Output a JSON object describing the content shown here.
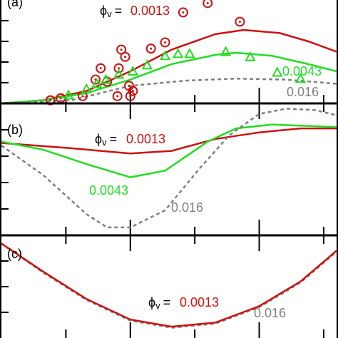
{
  "chart_data": [
    {
      "type": "line",
      "label": "(a)",
      "symbol": "ϕ",
      "subscript": "v",
      "equals": "=",
      "xlim": [
        0,
        2.6
      ],
      "ylim": [
        0,
        1
      ],
      "xticks": [
        0.5,
        1,
        1.5,
        2,
        2.5
      ],
      "yticks": [
        0.2,
        0.4,
        0.6,
        0.8
      ],
      "series": [
        {
          "name": "0.0013",
          "type": "line",
          "color": "#cc1111",
          "x": [
            0,
            0.32,
            0.66,
            1,
            1.32,
            1.66,
            1.88,
            2.16,
            2.38,
            2.6
          ],
          "values": [
            0,
            0.03,
            0.12,
            0.31,
            0.52,
            0.67,
            0.71,
            0.68,
            0.6,
            0.5
          ]
        },
        {
          "name": "0.0043",
          "type": "line",
          "color": "#22dd22",
          "x": [
            0,
            0.32,
            0.66,
            1,
            1.32,
            1.66,
            1.82,
            2.1,
            2.38,
            2.6
          ],
          "values": [
            0,
            0.03,
            0.1,
            0.23,
            0.38,
            0.47,
            0.49,
            0.46,
            0.38,
            0.31
          ]
        },
        {
          "name": "0.016",
          "type": "dashed",
          "color": "#808080",
          "x": [
            0,
            0.54,
            1,
            1.43,
            1.82,
            2.21,
            2.6
          ],
          "values": [
            0,
            0.03,
            0.17,
            0.22,
            0.24,
            0.23,
            0.19
          ]
        },
        {
          "type": "circles",
          "color": "#cc1111",
          "x": [
            0.38,
            0.46,
            0.63,
            0.73,
            0.77,
            0.82,
            0.9,
            0.91,
            0.93,
            0.96,
            0.99,
            1.02,
            1.0,
            1.16,
            1.27,
            1.41,
            1.6,
            1.85
          ],
          "values": [
            0.03,
            0.05,
            0.07,
            0.23,
            0.34,
            0.21,
            0.07,
            0.34,
            0.52,
            0.45,
            0.17,
            0.12,
            0.07,
            0.53,
            0.59,
            0.88,
            0.97,
            0.79
          ]
        },
        {
          "type": "triangles",
          "color": "#22dd22",
          "x": [
            0.52,
            0.66,
            0.74,
            0.81,
            0.91,
            1.02,
            1.13,
            1.27,
            1.37,
            1.46,
            1.74,
            1.93,
            2.14,
            2.32
          ],
          "values": [
            0.08,
            0.14,
            0.19,
            0.23,
            0.28,
            0.31,
            0.37,
            0.46,
            0.48,
            0.48,
            0.5,
            0.45,
            0.3,
            0.24
          ]
        }
      ]
    },
    {
      "type": "line",
      "label": "(b)",
      "symbol": "ϕ",
      "subscript": "v",
      "equals": "=",
      "xlim": [
        0,
        2.6
      ],
      "ylim": [
        0,
        1
      ],
      "xticks": [
        0.5,
        1,
        1.5,
        2,
        2.5
      ],
      "yticks": [
        0.2,
        0.4,
        0.6,
        0.8
      ],
      "series": [
        {
          "name": "0.0013",
          "type": "line",
          "color": "#cc1111",
          "x": [
            0,
            0.54,
            1,
            1.32,
            1.66,
            2,
            2.32,
            2.6
          ],
          "values": [
            0.7,
            0.66,
            0.62,
            0.64,
            0.73,
            0.78,
            0.81,
            0.81
          ]
        },
        {
          "name": "0.0043",
          "type": "line",
          "color": "#22dd22",
          "x": [
            0,
            0.32,
            0.66,
            1,
            1.27,
            1.6,
            1.82,
            2.1,
            2.6
          ],
          "values": [
            0.71,
            0.65,
            0.54,
            0.44,
            0.49,
            0.71,
            0.81,
            0.84,
            0.82
          ]
        },
        {
          "name": "0.016",
          "type": "dashed",
          "color": "#808080",
          "x": [
            0,
            0.32,
            0.66,
            0.82,
            1,
            1.27,
            1.54,
            1.77,
            2,
            2.21,
            2.43,
            2.6
          ],
          "values": [
            0.68,
            0.46,
            0.16,
            0.06,
            0.06,
            0.19,
            0.51,
            0.76,
            0.92,
            0.96,
            0.95,
            0.91
          ]
        }
      ]
    },
    {
      "type": "line",
      "label": "(c)",
      "symbol": "ϕ",
      "subscript": "v",
      "equals": "=",
      "xlim": [
        0,
        2.6
      ],
      "ylim": [
        0,
        1
      ],
      "xticks": [
        0.5,
        1,
        1.5,
        2,
        2.5
      ],
      "yticks": [
        0.25,
        0.5,
        0.75
      ],
      "series": [
        {
          "name": "0.016",
          "type": "dashed",
          "color": "#808080",
          "x": [
            0,
            0.32,
            0.66,
            1,
            1.32,
            1.66,
            2,
            2.32,
            2.6
          ],
          "values": [
            0.92,
            0.64,
            0.37,
            0.17,
            0.1,
            0.14,
            0.3,
            0.54,
            0.84
          ]
        },
        {
          "name": "0.0013",
          "type": "line",
          "color": "#cc1111",
          "x": [
            0,
            0.32,
            0.66,
            1,
            1.32,
            1.66,
            2,
            2.32,
            2.6
          ],
          "values": [
            0.92,
            0.65,
            0.38,
            0.18,
            0.11,
            0.15,
            0.31,
            0.55,
            0.85
          ]
        }
      ]
    }
  ]
}
